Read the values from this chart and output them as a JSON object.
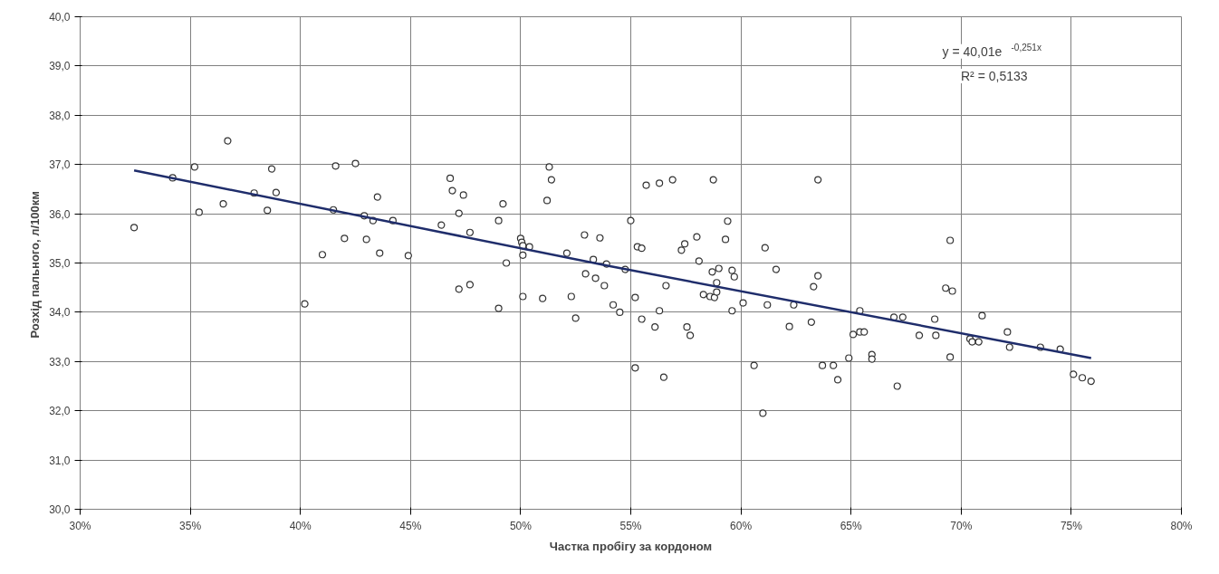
{
  "chart_data": {
    "type": "scatter",
    "xlabel": "Частка пробігу за кордоном",
    "ylabel": "Розхід пального,  л/100км",
    "xlim": [
      30,
      80
    ],
    "ylim": [
      30,
      40
    ],
    "xticks": [
      {
        "value": 30,
        "label": "30%"
      },
      {
        "value": 35,
        "label": "35%"
      },
      {
        "value": 40,
        "label": "40%"
      },
      {
        "value": 45,
        "label": "45%"
      },
      {
        "value": 50,
        "label": "50%"
      },
      {
        "value": 55,
        "label": "55%"
      },
      {
        "value": 60,
        "label": "60%"
      },
      {
        "value": 65,
        "label": "65%"
      },
      {
        "value": 70,
        "label": "70%"
      },
      {
        "value": 75,
        "label": "75%"
      },
      {
        "value": 80,
        "label": "80%"
      }
    ],
    "yticks": [
      {
        "value": 30,
        "label": "30,0"
      },
      {
        "value": 31,
        "label": "31,0"
      },
      {
        "value": 32,
        "label": "32,0"
      },
      {
        "value": 33,
        "label": "33,0"
      },
      {
        "value": 34,
        "label": "34,0"
      },
      {
        "value": 35,
        "label": "35,0"
      },
      {
        "value": 36,
        "label": "36,0"
      },
      {
        "value": 37,
        "label": "37,0"
      },
      {
        "value": 38,
        "label": "38,0"
      },
      {
        "value": 39,
        "label": "39,0"
      },
      {
        "value": 40,
        "label": "40,0"
      }
    ],
    "grid": true,
    "marker": "circle",
    "annotations": [
      "y = 40,01e$^{-0,251x}$",
      "R² = 0,5133"
    ],
    "series": [
      {
        "color": "#333333",
        "x": [
          32.45,
          34.2,
          35.2,
          35.4,
          36.5,
          36.7,
          37.9,
          38.7,
          38.9,
          38.5,
          40.2,
          41.0,
          41.5,
          41.6,
          42.0,
          42.5,
          42.9,
          43.0,
          43.3,
          43.5,
          43.6,
          44.2,
          44.9,
          46.4,
          46.8,
          46.9,
          47.2,
          47.2,
          47.4,
          47.7,
          47.7,
          49.0,
          49.0,
          49.2,
          49.35,
          50.0,
          50.05,
          50.1,
          50.4,
          50.1,
          50.1,
          51.0,
          51.2,
          51.3,
          51.4,
          52.1,
          52.3,
          52.5,
          52.9,
          52.95,
          53.3,
          53.4,
          53.6,
          53.8,
          53.9,
          54.2,
          54.5,
          54.75,
          55.0,
          55.2,
          55.2,
          55.3,
          55.5,
          55.5,
          55.7,
          56.1,
          56.3,
          56.3,
          56.5,
          56.6,
          56.9,
          57.3,
          57.45,
          57.55,
          57.7,
          58.0,
          58.1,
          58.3,
          58.6,
          58.7,
          58.75,
          58.8,
          58.9,
          58.9,
          59.0,
          59.3,
          59.4,
          59.6,
          59.6,
          59.7,
          60.1,
          60.6,
          61.0,
          61.1,
          61.2,
          61.6,
          62.2,
          62.4,
          63.2,
          63.3,
          63.5,
          63.5,
          63.7,
          64.2,
          64.4,
          64.9,
          65.1,
          65.4,
          65.4,
          65.6,
          65.95,
          65.95,
          66.95,
          67.1,
          67.35,
          68.1,
          68.8,
          68.85,
          69.3,
          69.5,
          69.6,
          69.5,
          70.4,
          70.5,
          70.8,
          70.95,
          72.1,
          72.2,
          73.6,
          74.5,
          75.1,
          75.5,
          75.9
        ],
        "values": [
          35.72,
          36.73,
          36.95,
          36.03,
          36.2,
          37.48,
          36.42,
          36.91,
          36.43,
          36.07,
          34.17,
          35.17,
          36.08,
          36.97,
          35.5,
          37.02,
          35.96,
          35.48,
          35.86,
          36.34,
          35.2,
          35.86,
          35.15,
          35.77,
          36.72,
          36.47,
          36.01,
          34.47,
          36.38,
          35.62,
          34.56,
          35.86,
          34.08,
          36.2,
          35.0,
          35.5,
          35.42,
          35.35,
          35.33,
          35.16,
          34.32,
          34.28,
          36.27,
          36.95,
          36.69,
          35.2,
          34.32,
          33.88,
          35.57,
          34.78,
          35.07,
          34.69,
          35.51,
          34.54,
          34.98,
          34.15,
          34.0,
          34.87,
          35.86,
          34.3,
          32.87,
          35.33,
          35.3,
          33.86,
          36.58,
          33.7,
          36.62,
          34.03,
          32.68,
          34.54,
          36.69,
          35.26,
          35.39,
          33.7,
          33.53,
          35.53,
          35.04,
          34.36,
          34.32,
          34.82,
          36.69,
          34.3,
          34.41,
          34.6,
          34.89,
          35.48,
          35.85,
          34.03,
          34.85,
          34.72,
          34.19,
          32.92,
          31.95,
          35.31,
          34.15,
          34.87,
          33.71,
          34.15,
          33.8,
          34.52,
          34.74,
          36.69,
          32.92,
          32.92,
          32.63,
          33.07,
          33.55,
          34.03,
          33.6,
          33.6,
          33.14,
          33.05,
          33.9,
          32.5,
          33.9,
          33.53,
          33.86,
          33.53,
          34.49,
          35.46,
          34.43,
          33.09,
          33.46,
          33.4,
          33.4,
          33.93,
          33.6,
          33.29,
          33.29,
          33.25,
          32.74,
          32.67,
          32.6
        ]
      },
      {
        "type": "line",
        "color": "#1f2d6b",
        "marker": "none",
        "x": [
          32.45,
          54.0,
          75.9
        ],
        "values": [
          36.88,
          34.94,
          33.07
        ]
      }
    ]
  }
}
